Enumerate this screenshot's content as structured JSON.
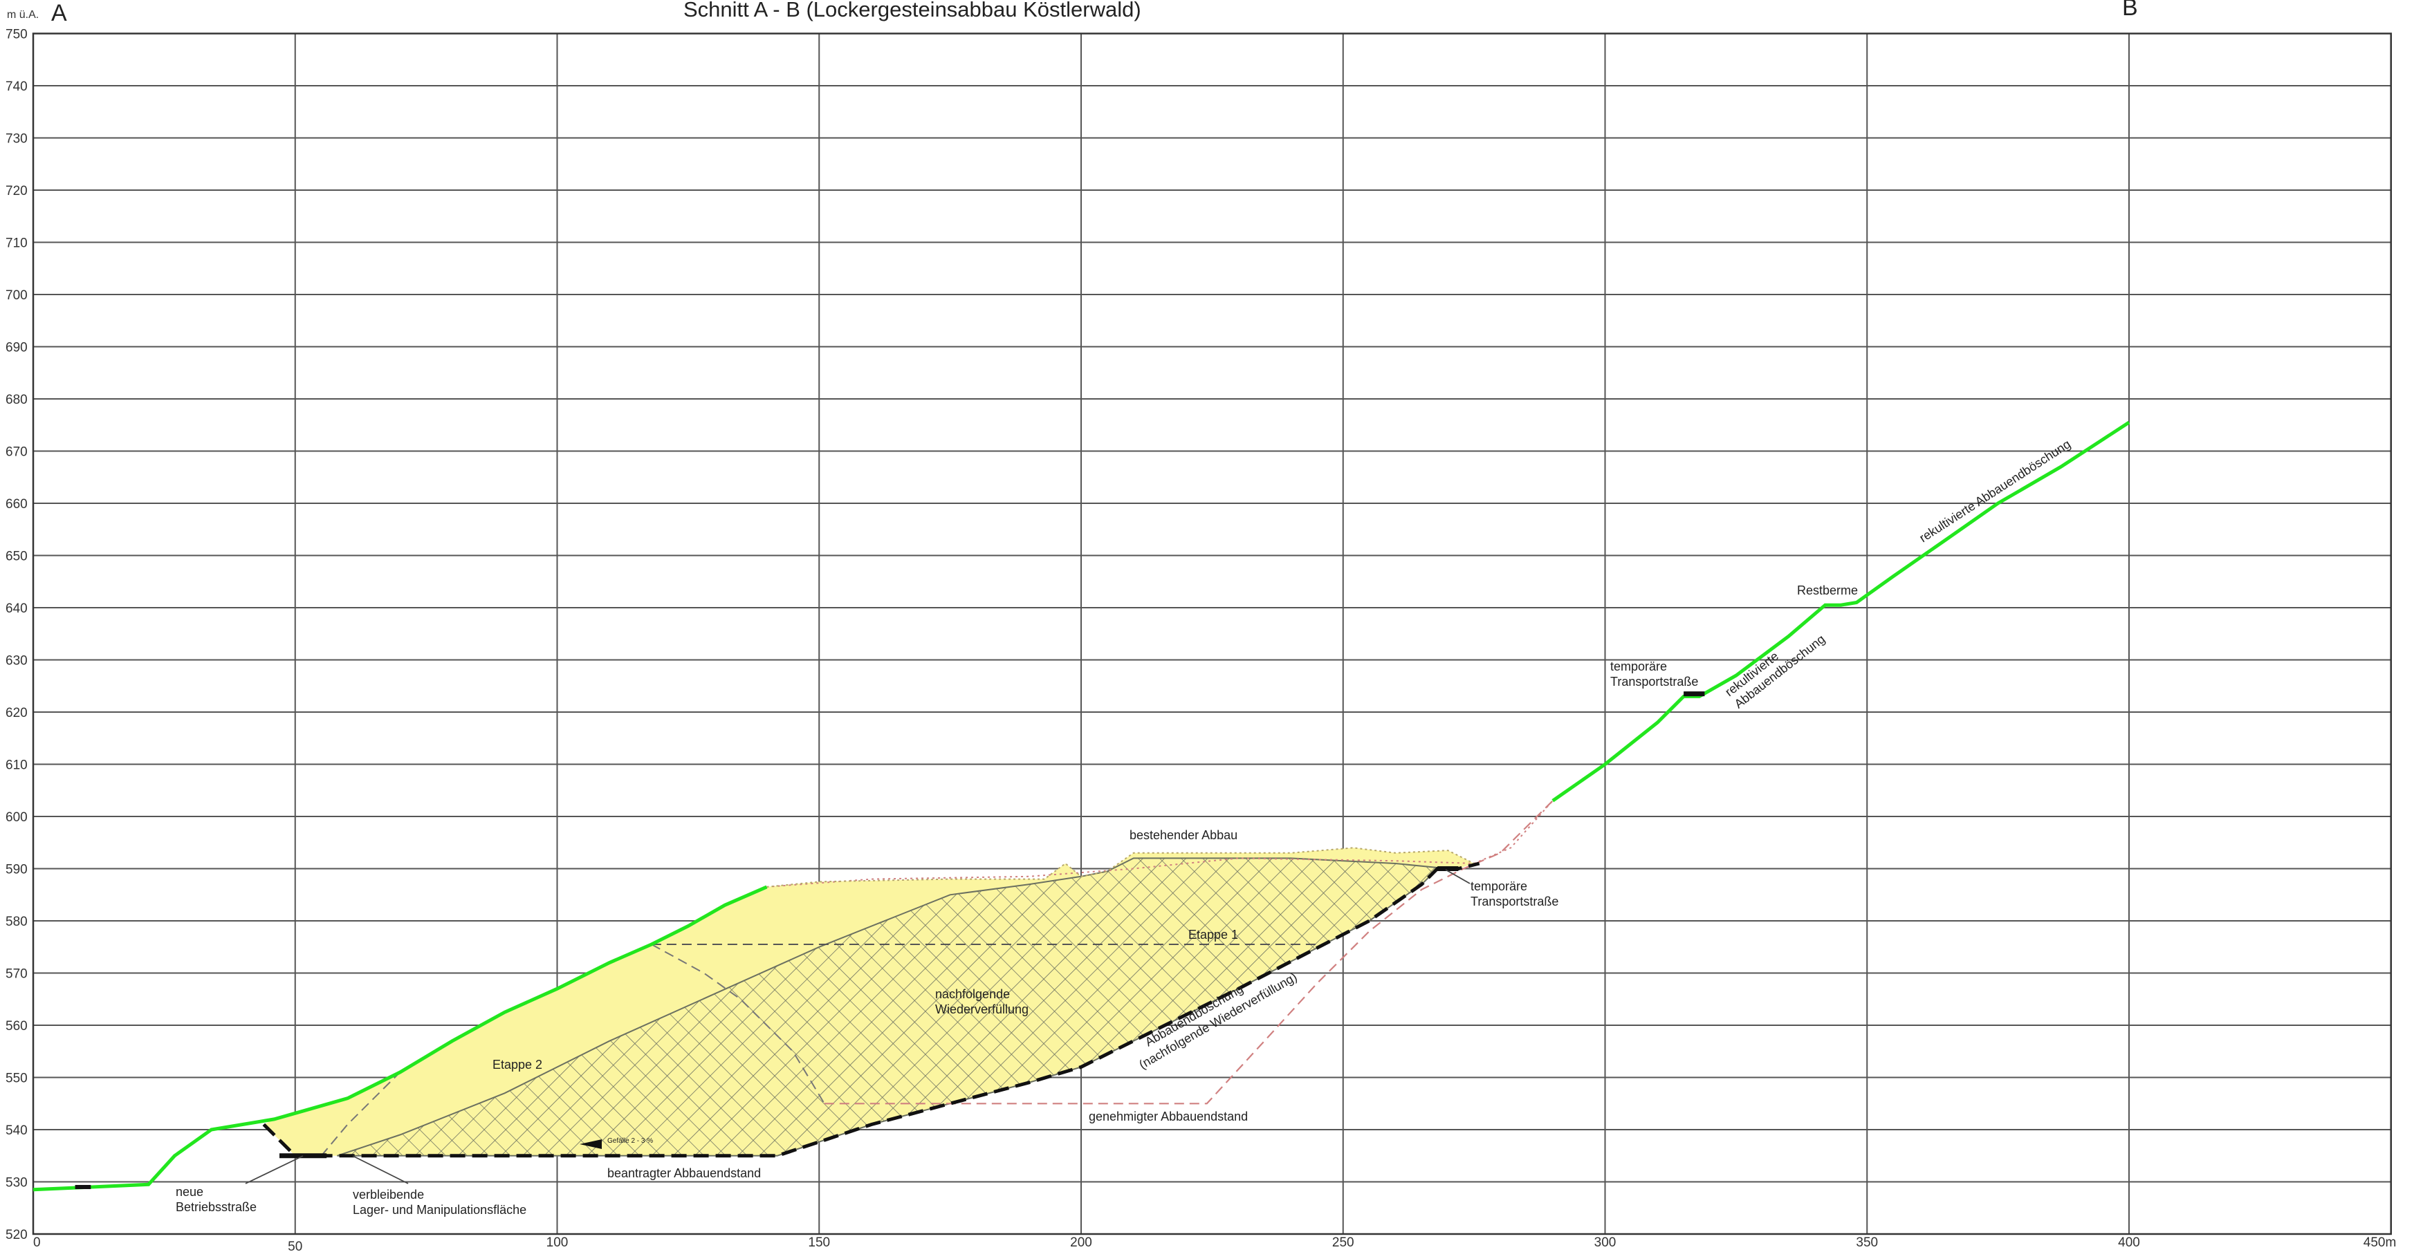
{
  "header": {
    "unit": "m ü.A.",
    "point_a": "A",
    "point_b": "B",
    "title": "Schnitt A - B (Lockergesteinsabbau Köstlerwald)"
  },
  "x_axis": {
    "ticks": [
      0,
      50,
      100,
      150,
      200,
      250,
      300,
      350,
      400,
      450
    ],
    "tick_labels": [
      "0",
      "50",
      "100",
      "150",
      "200",
      "250",
      "300",
      "350",
      "400",
      "450m"
    ]
  },
  "y_axis": {
    "ticks": [
      520,
      530,
      540,
      550,
      560,
      570,
      580,
      590,
      600,
      610,
      620,
      630,
      640,
      650,
      660,
      670,
      680,
      690,
      700,
      710,
      720,
      730,
      740,
      750
    ]
  },
  "annotations": {
    "neue_betriebsstrasse": [
      "neue",
      "Betriebsstraße"
    ],
    "verbleibende": [
      "verbleibende",
      "Lager- und Manipulationsfläche"
    ],
    "beantragter": "beantragter Abbauendstand",
    "gefaelle": "Gefälle 2 - 3 %",
    "etappe2": "Etappe 2",
    "nachfolgende": [
      "nachfolgende",
      "Wiederverfüllung"
    ],
    "etappe1": "Etappe 1",
    "bestehender": "bestehender Abbau",
    "temp_transport_low": [
      "temporäre",
      "Transportstraße"
    ],
    "abbauendboeschung": [
      "Abbauendböschung",
      "(nachfolgende Wiederverfüllung)"
    ],
    "genehmigter": "genehmigter Abbauendstand",
    "temp_transport_high": [
      "temporäre",
      "Transportstraße"
    ],
    "rekultivierte_lower": [
      "rekultivierte",
      "Abbauendböschung"
    ],
    "restberme": "Restberme",
    "rekultivierte_upper": "rekultivierte Abbauendböschung"
  },
  "colors": {
    "terrain": "#22e61e",
    "fill": "#fbf5a0",
    "hatch": "#6b7060",
    "final_line": "#111111",
    "approved_line": "#d08080",
    "grid": "#555555"
  },
  "profiles": {
    "terrain_left": [
      [
        0,
        528.5
      ],
      [
        22,
        529.5
      ],
      [
        27,
        535
      ],
      [
        34,
        540
      ],
      [
        46,
        542
      ],
      [
        53,
        544
      ],
      [
        60,
        546
      ],
      [
        70,
        551
      ],
      [
        80,
        557
      ],
      [
        90,
        562.5
      ],
      [
        100,
        567
      ],
      [
        110,
        572
      ],
      [
        118,
        575.5
      ],
      [
        125,
        579
      ],
      [
        132,
        583
      ],
      [
        140,
        586.5
      ]
    ],
    "terrain_right": [
      [
        290,
        603
      ],
      [
        300,
        610
      ],
      [
        310,
        618
      ],
      [
        315,
        623
      ],
      [
        318,
        623
      ],
      [
        325,
        627
      ],
      [
        335,
        634.5
      ],
      [
        342,
        640.5
      ],
      [
        345,
        640.5
      ],
      [
        348,
        641
      ],
      [
        355,
        646
      ],
      [
        365,
        653
      ],
      [
        375,
        660
      ],
      [
        387,
        667
      ],
      [
        400,
        675.5
      ]
    ],
    "pre_mining_dotted": [
      [
        140,
        586.5
      ],
      [
        160,
        588
      ],
      [
        190,
        588.5
      ],
      [
        210,
        590
      ],
      [
        230,
        592
      ],
      [
        260,
        591.5
      ],
      [
        275,
        591
      ],
      [
        282,
        594
      ],
      [
        290,
        603
      ]
    ],
    "existing_mining_top": [
      [
        140,
        586.5
      ],
      [
        150,
        587.5
      ],
      [
        175,
        588
      ],
      [
        193,
        588
      ],
      [
        197,
        591
      ],
      [
        200,
        588.5
      ],
      [
        205,
        589.5
      ],
      [
        210,
        593
      ],
      [
        240,
        593
      ],
      [
        252,
        594
      ],
      [
        260,
        593
      ],
      [
        270,
        593.5
      ],
      [
        275,
        591
      ]
    ],
    "final_extraction": [
      [
        44,
        541
      ],
      [
        48,
        537
      ],
      [
        50,
        535
      ],
      [
        55,
        535
      ],
      [
        58,
        535
      ],
      [
        142,
        535
      ],
      [
        160,
        541
      ],
      [
        190,
        549
      ],
      [
        200,
        552
      ],
      [
        230,
        567
      ],
      [
        255,
        580
      ],
      [
        265,
        587
      ],
      [
        268,
        590
      ],
      [
        272,
        590
      ],
      [
        276,
        591
      ]
    ],
    "fill_polygon": [
      [
        46,
        542
      ],
      [
        53,
        544
      ],
      [
        60,
        546
      ],
      [
        70,
        551
      ],
      [
        80,
        557
      ],
      [
        90,
        562.5
      ],
      [
        100,
        567
      ],
      [
        110,
        572
      ],
      [
        118,
        575.5
      ],
      [
        125,
        579
      ],
      [
        132,
        583
      ],
      [
        140,
        586.5
      ],
      [
        150,
        587.5
      ],
      [
        175,
        588
      ],
      [
        193,
        588
      ],
      [
        197,
        591
      ],
      [
        200,
        588.5
      ],
      [
        205,
        589.5
      ],
      [
        210,
        593
      ],
      [
        240,
        593
      ],
      [
        252,
        594
      ],
      [
        260,
        593
      ],
      [
        270,
        593.5
      ],
      [
        275,
        591
      ],
      [
        272,
        590
      ],
      [
        268,
        590
      ],
      [
        265,
        587
      ],
      [
        255,
        580
      ],
      [
        230,
        567
      ],
      [
        200,
        552
      ],
      [
        190,
        549
      ],
      [
        160,
        541
      ],
      [
        142,
        535
      ],
      [
        58,
        535
      ],
      [
        55,
        535
      ],
      [
        50,
        535
      ],
      [
        48,
        537
      ],
      [
        44,
        541
      ]
    ],
    "hatch_polygon": [
      [
        58,
        535
      ],
      [
        70,
        539
      ],
      [
        90,
        547
      ],
      [
        110,
        557
      ],
      [
        130,
        566
      ],
      [
        150,
        575
      ],
      [
        165,
        581
      ],
      [
        175,
        585
      ],
      [
        190,
        587
      ],
      [
        200,
        588.5
      ],
      [
        205,
        589.5
      ],
      [
        210,
        592
      ],
      [
        240,
        592
      ],
      [
        260,
        591
      ],
      [
        270,
        590
      ],
      [
        268,
        590
      ],
      [
        265,
        587
      ],
      [
        255,
        580
      ],
      [
        230,
        567
      ],
      [
        200,
        552
      ],
      [
        190,
        549
      ],
      [
        160,
        541
      ],
      [
        142,
        535
      ]
    ],
    "approved_pink": [
      [
        151,
        545
      ],
      [
        224,
        545
      ],
      [
        235,
        557
      ],
      [
        245,
        568
      ],
      [
        255,
        578
      ],
      [
        265,
        586
      ],
      [
        273,
        590
      ],
      [
        280,
        593
      ],
      [
        290,
        603
      ]
    ],
    "stage_dash_upper": [
      [
        118,
        575.5
      ],
      [
        130,
        575.5
      ],
      [
        170,
        575.5
      ],
      [
        215,
        575.5
      ],
      [
        245,
        575.5
      ]
    ],
    "stage_dash_diagonal": [
      [
        118,
        575.5
      ],
      [
        128,
        570
      ],
      [
        135,
        565
      ],
      [
        140,
        560
      ],
      [
        145,
        555
      ],
      [
        151,
        545
      ]
    ],
    "stage_dash_left": [
      [
        55,
        535
      ],
      [
        60,
        541
      ],
      [
        65,
        546
      ],
      [
        70,
        551
      ]
    ],
    "road_left": [
      [
        8,
        529
      ],
      [
        11,
        529
      ]
    ],
    "road_mid": [
      [
        47,
        535
      ],
      [
        56,
        535
      ]
    ],
    "road_high": [
      [
        315,
        623.5
      ],
      [
        319,
        623.5
      ]
    ],
    "road_temp": [
      [
        268,
        590
      ],
      [
        272,
        590
      ]
    ]
  }
}
